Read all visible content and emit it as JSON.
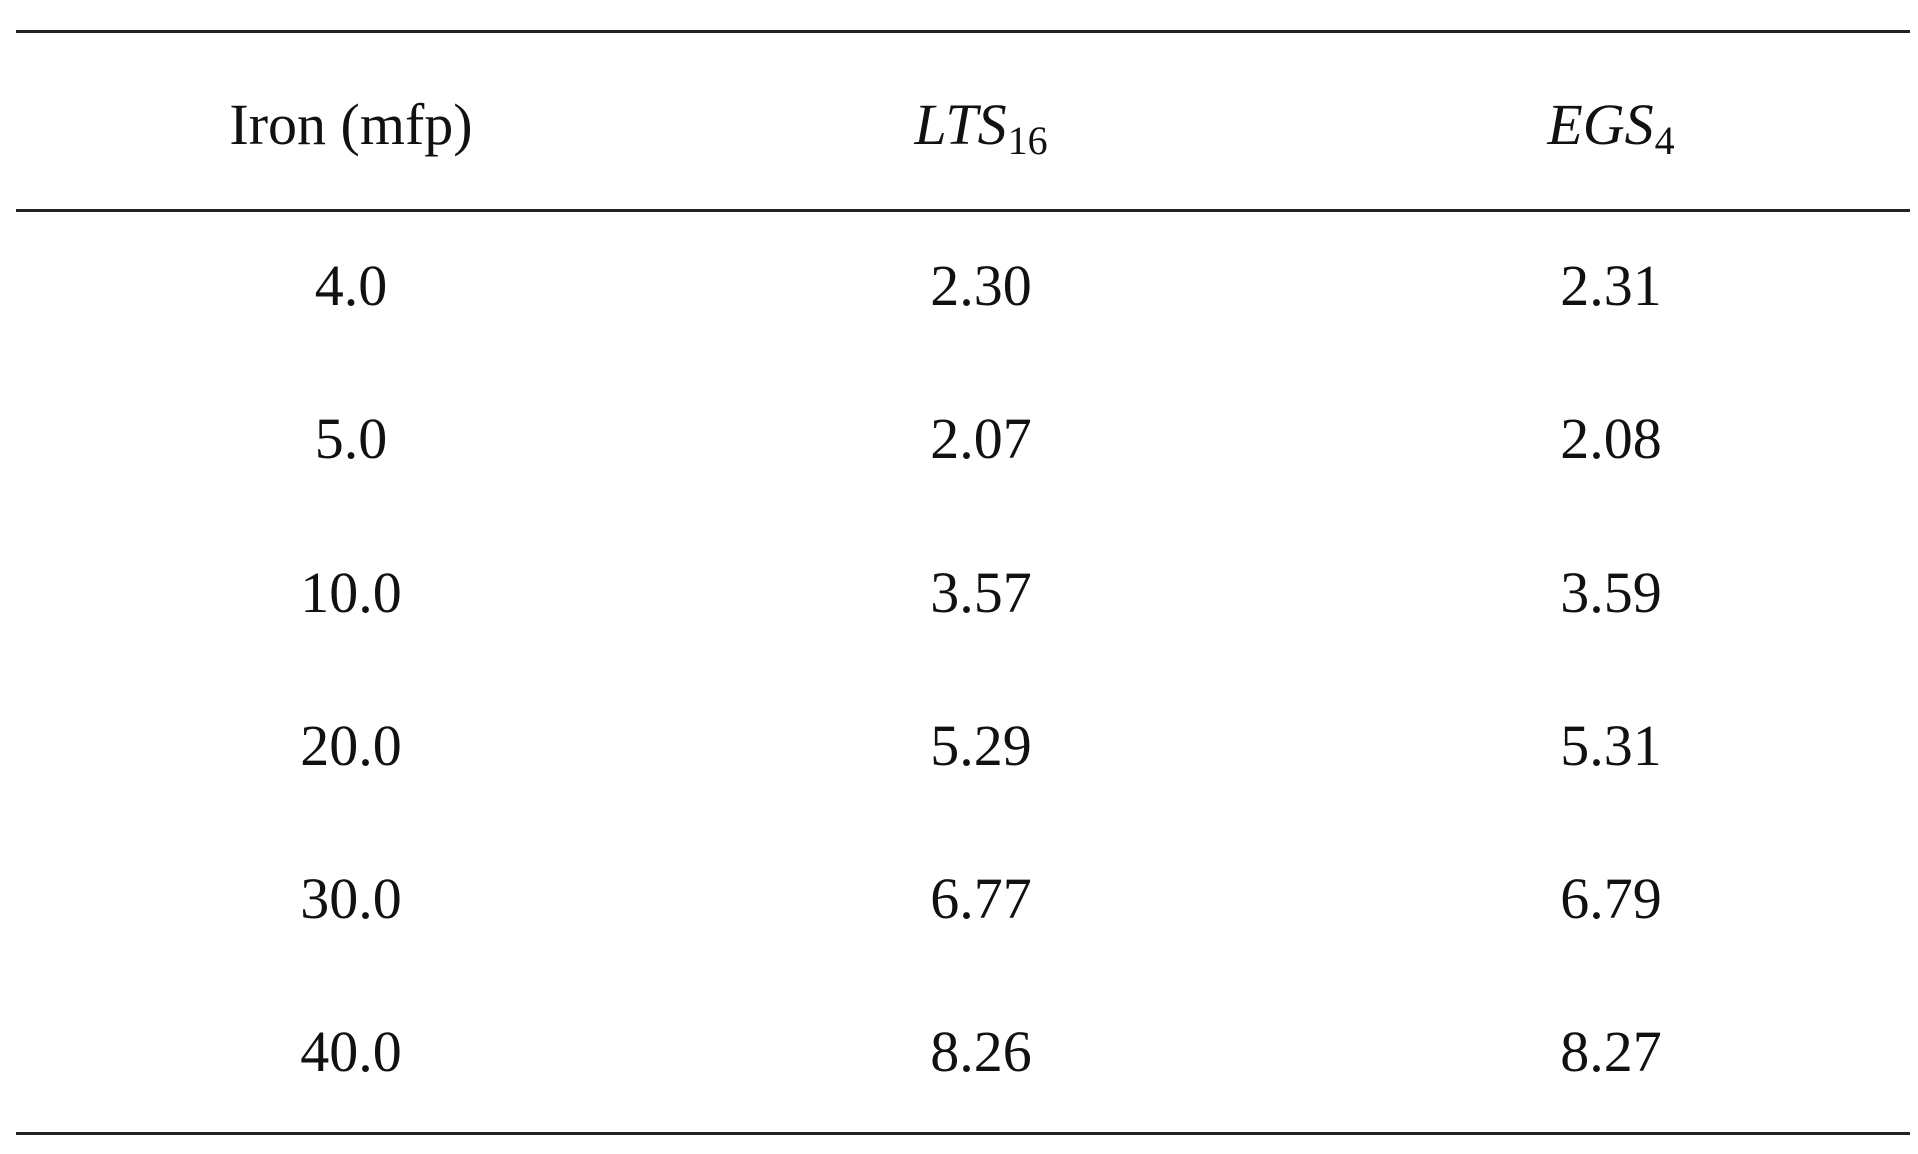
{
  "table": {
    "headers": [
      {
        "main": "Iron (mfp)",
        "sub": ""
      },
      {
        "main": "LTS",
        "sub": "16"
      },
      {
        "main": "EGS",
        "sub": "4"
      }
    ],
    "rows": [
      [
        "4.0",
        "2.30",
        "2.31"
      ],
      [
        "5.0",
        "2.07",
        "2.08"
      ],
      [
        "10.0",
        "3.57",
        "3.59"
      ],
      [
        "20.0",
        "5.29",
        "5.31"
      ],
      [
        "30.0",
        "6.77",
        "6.79"
      ],
      [
        "40.0",
        "8.26",
        "8.27"
      ]
    ]
  }
}
